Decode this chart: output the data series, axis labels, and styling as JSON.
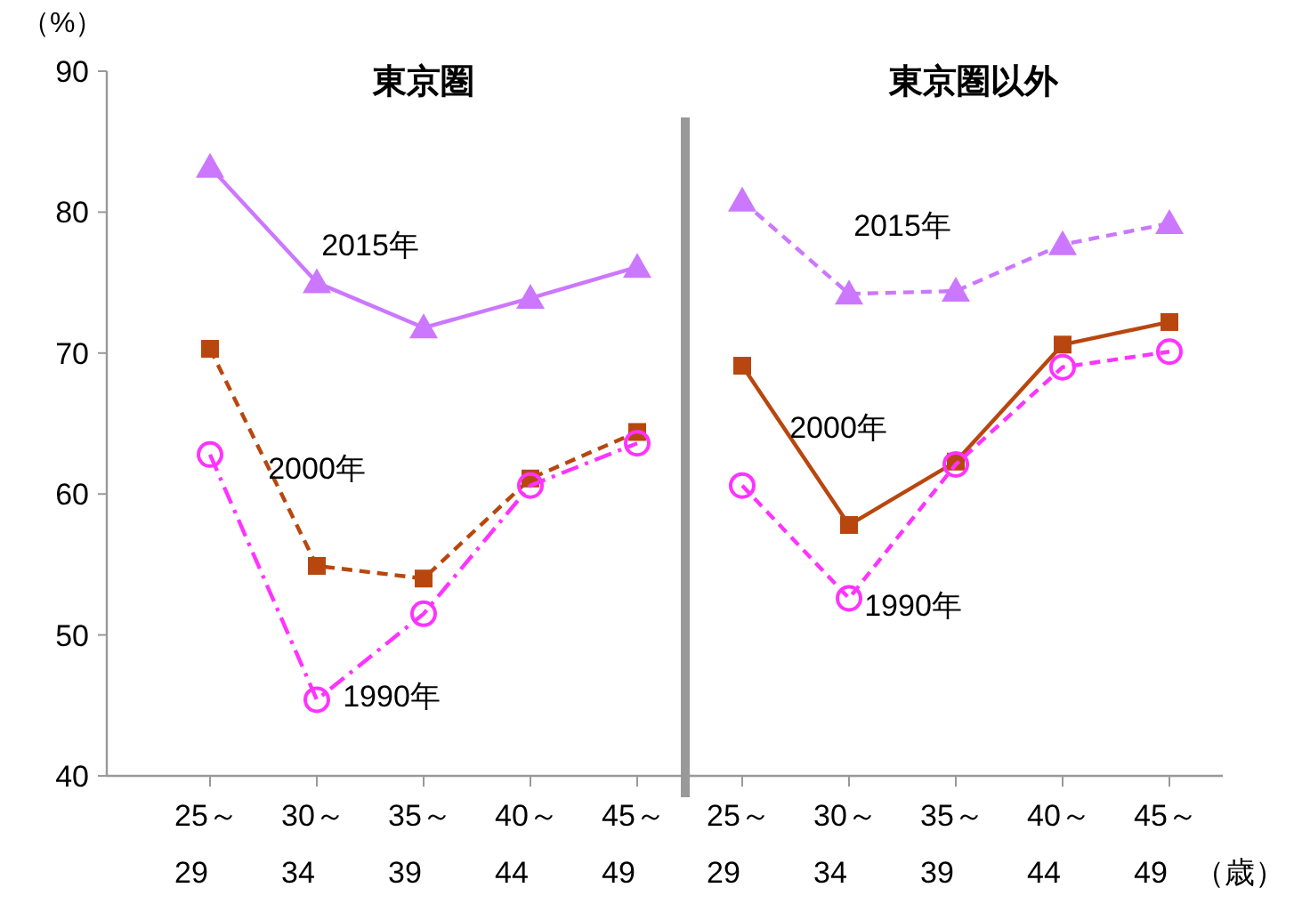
{
  "chart_data": [
    {
      "type": "line",
      "title": "東京圏",
      "ylabel": "（%）",
      "categories": [
        "25～\n29",
        "30～\n34",
        "35～\n39",
        "40～\n44",
        "45～\n49"
      ],
      "ylim": [
        40,
        90
      ],
      "yticks": [
        40,
        50,
        60,
        70,
        80,
        90
      ],
      "series": [
        {
          "name": "2015年",
          "color": "#cc77ff",
          "marker": "triangle",
          "line_style": "solid",
          "values": [
            83.2,
            75.0,
            71.8,
            73.9,
            76.1
          ]
        },
        {
          "name": "2000年",
          "color": "#b8470f",
          "marker": "square",
          "line_style": "dashed",
          "values": [
            70.3,
            54.9,
            54.0,
            61.1,
            64.4
          ]
        },
        {
          "name": "1990年",
          "color": "#ff33ff",
          "marker": "circle",
          "line_style": "dashdot",
          "values": [
            62.8,
            45.4,
            51.5,
            60.6,
            63.6
          ]
        }
      ]
    },
    {
      "type": "line",
      "title": "東京圏以外",
      "xlabel": "（歳）",
      "categories": [
        "25～\n29",
        "30～\n34",
        "35～\n39",
        "40～\n44",
        "45～\n49"
      ],
      "ylim": [
        40,
        90
      ],
      "tick_labels": "x",
      "series": [
        {
          "name": "2015年",
          "color": "#cc77ff",
          "marker": "triangle",
          "line_style": "dashed",
          "values": [
            80.8,
            74.2,
            74.4,
            77.7,
            79.2
          ]
        },
        {
          "name": "2000年",
          "color": "#b8470f",
          "marker": "square",
          "line_style": "solid",
          "values": [
            69.1,
            57.8,
            62.3,
            70.6,
            72.2
          ]
        },
        {
          "name": "1990年",
          "color": "#ff33ff",
          "marker": "circle",
          "line_style": "dashed",
          "values": [
            60.6,
            52.6,
            62.1,
            69.0,
            70.1
          ]
        }
      ]
    }
  ]
}
